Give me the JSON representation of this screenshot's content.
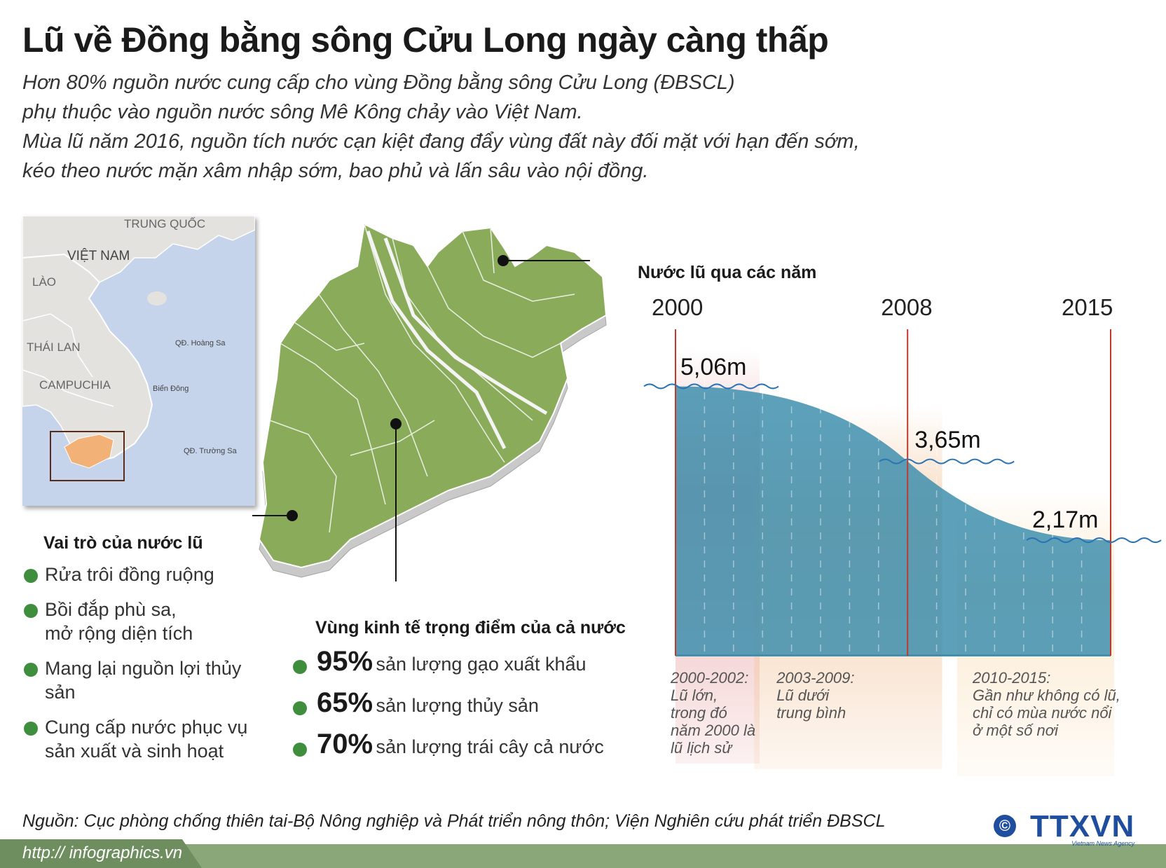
{
  "title": "Lũ về Đồng bằng sông Cửu Long ngày càng thấp",
  "intro": [
    "Hơn 80% nguồn nước cung cấp cho vùng Đồng bằng sông Cửu Long (ĐBSCL)",
    "phụ thuộc vào nguồn nước sông Mê Kông chảy vào Việt Nam.",
    "Mùa lũ năm 2016, nguồn tích nước cạn kiệt đang đẩy vùng đất này đối mặt với hạn đến sớm,",
    "kéo theo nước mặn xâm nhập sớm, bao phủ và lấn sâu vào nội đồng."
  ],
  "inset_map": {
    "labels": {
      "china": "TRUNG QUỐC",
      "vietnam": "VIỆT NAM",
      "laos": "LÀO",
      "thailand": "THÁI LAN",
      "cambodia": "CAMPUCHIA",
      "hoang_sa": "QĐ. Hoàng Sa",
      "bien_dong": "Biển Đông",
      "truong_sa": "QĐ. Trường Sa"
    }
  },
  "roles": {
    "heading": "Vai trò của nước lũ",
    "items": [
      [
        "Rửa trôi đồng ruộng"
      ],
      [
        "Bồi đắp phù sa,",
        "mở rộng diện tích"
      ],
      [
        "Mang lại nguồn lợi thủy sản"
      ],
      [
        "Cung cấp nước phục vụ",
        "sản xuất và sinh hoạt"
      ]
    ]
  },
  "economy": {
    "heading": "Vùng kinh tế trọng điểm của cả nước",
    "items": [
      {
        "pct": "95%",
        "text": "sản lượng gạo xuất khẩu"
      },
      {
        "pct": "65%",
        "text": "sản lượng thủy sản"
      },
      {
        "pct": "70%",
        "text": "sản lượng trái cây cả nước"
      }
    ]
  },
  "chart_data": {
    "type": "area",
    "title": "Nước lũ qua các năm",
    "x_ticks": [
      "2000",
      "2008",
      "2015"
    ],
    "points": [
      {
        "x": 2000,
        "y": 5.06,
        "label": "5,06m"
      },
      {
        "x": 2008,
        "y": 3.65,
        "label": "3,65m"
      },
      {
        "x": 2015,
        "y": 2.17,
        "label": "2,17m"
      }
    ],
    "periods": [
      {
        "range": "2000-2002:",
        "note": [
          "Lũ lớn,",
          "trong đó",
          "năm 2000 là",
          "lũ lịch sử"
        ],
        "color": "#e8a0a0"
      },
      {
        "range": "2003-2009:",
        "note": [
          "Lũ dưới",
          "trung bình"
        ],
        "color": "#f3c7a0"
      },
      {
        "range": "2010-2015:",
        "note": [
          "Gần như không có lũ,",
          "chỉ có mùa nước nổi",
          "ở một số nơi"
        ],
        "color": "#fbe6c8"
      }
    ],
    "colors": {
      "area": "#3f8fae",
      "year_line": "#c0392b",
      "wave": "#2a73b5"
    }
  },
  "source": "Nguồn: Cục phòng chống thiên tai-Bộ Nông nghiệp và Phát triển nông thôn; Viện Nghiên cứu phát triển ĐBSCL",
  "footer": {
    "url": "http:// infographics.vn"
  },
  "logo": {
    "name": "TTXVN",
    "sub": "Vietnam News Agency",
    "copyright": "©"
  }
}
